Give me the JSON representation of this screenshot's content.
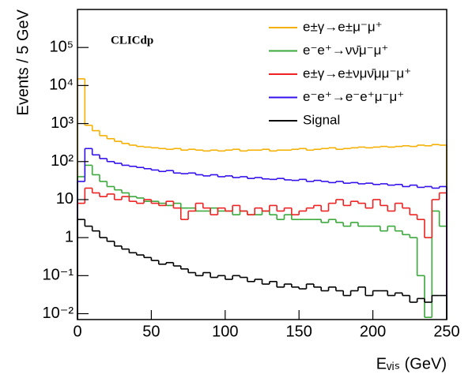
{
  "chart_data": {
    "type": "histogram",
    "xlabel": "Eᵥᵢₛ (GeV)",
    "ylabel": "Events / 5 GeV",
    "annotation": "CLICdp",
    "log_y": true,
    "legend": "upper right",
    "xlim": [
      0,
      250
    ],
    "xticks": [
      0,
      50,
      100,
      150,
      200,
      250
    ],
    "ylim": [
      0.007,
      1000000
    ],
    "yticks": [
      {
        "value": 0.01,
        "label": "10⁻²"
      },
      {
        "value": 0.1,
        "label": "10⁻¹"
      },
      1,
      10,
      {
        "value": 100,
        "label": "10²"
      },
      {
        "value": 1000,
        "label": "10³"
      },
      {
        "value": 10000,
        "label": "10⁴"
      },
      {
        "value": 100000,
        "label": "10⁵"
      }
    ],
    "bins": [
      0,
      5,
      10,
      15,
      20,
      25,
      30,
      35,
      40,
      45,
      50,
      55,
      60,
      65,
      70,
      75,
      80,
      85,
      90,
      95,
      100,
      105,
      110,
      115,
      120,
      125,
      130,
      135,
      140,
      145,
      150,
      155,
      160,
      165,
      170,
      175,
      180,
      185,
      190,
      195,
      200,
      205,
      210,
      215,
      220,
      225,
      230,
      235,
      240,
      245,
      250
    ],
    "series": [
      {
        "name": "e±γ→e±μ⁻μ⁺",
        "color": "#f5b000",
        "values": [
          15000,
          900,
          650,
          480,
          400,
          340,
          300,
          270,
          250,
          240,
          230,
          220,
          210,
          220,
          200,
          210,
          200,
          190,
          200,
          190,
          200,
          210,
          190,
          200,
          200,
          210,
          190,
          200,
          200,
          210,
          220,
          200,
          210,
          220,
          230,
          210,
          220,
          230,
          240,
          230,
          240,
          250,
          240,
          250,
          260,
          250,
          270,
          260,
          280,
          270
        ]
      },
      {
        "name": "e⁻e⁺→νν̄μ⁻μ⁺",
        "color": "#3aa83a",
        "values": [
          40,
          80,
          45,
          30,
          22,
          18,
          15,
          12,
          11,
          9,
          9,
          8,
          7,
          8,
          6,
          6,
          5,
          5,
          6,
          5,
          5,
          4,
          5,
          4,
          4,
          5,
          4,
          3,
          4,
          3,
          3,
          3,
          3,
          2.5,
          3,
          2.5,
          2,
          2.5,
          2,
          2,
          2,
          1.5,
          2,
          1.5,
          1.2,
          1,
          0.1,
          0.008,
          5,
          2
        ]
      },
      {
        "name": "e±γ→e±νμν̄μμ⁻μ⁺",
        "color": "#ee2222",
        "values": [
          8,
          20,
          15,
          12,
          14,
          10,
          12,
          9,
          8,
          10,
          8,
          7,
          9,
          6,
          3,
          5,
          8,
          6,
          4,
          6,
          5,
          7,
          5,
          4,
          6,
          5,
          7,
          5,
          6,
          4,
          5,
          6,
          7,
          5,
          8,
          10,
          7,
          9,
          8,
          6,
          10,
          7,
          5,
          8,
          6,
          4,
          3,
          1,
          10,
          15
        ]
      },
      {
        "name": "e⁻e⁺→e⁻e⁺μ⁻μ⁺",
        "color": "#3311ee",
        "values": [
          30,
          220,
          150,
          120,
          100,
          90,
          80,
          75,
          70,
          65,
          60,
          55,
          58,
          50,
          48,
          50,
          45,
          42,
          45,
          40,
          42,
          38,
          40,
          36,
          38,
          35,
          34,
          36,
          33,
          32,
          34,
          30,
          32,
          30,
          28,
          30,
          27,
          28,
          26,
          27,
          25,
          26,
          24,
          25,
          22,
          24,
          21,
          22,
          20,
          22
        ]
      },
      {
        "name": "Signal",
        "color": "#000000",
        "values": [
          3,
          2,
          1.5,
          1,
          0.8,
          0.6,
          0.5,
          0.4,
          0.35,
          0.3,
          0.25,
          0.2,
          0.22,
          0.18,
          0.15,
          0.12,
          0.1,
          0.12,
          0.09,
          0.1,
          0.08,
          0.1,
          0.09,
          0.07,
          0.08,
          0.06,
          0.07,
          0.05,
          0.06,
          0.05,
          0.045,
          0.06,
          0.05,
          0.04,
          0.05,
          0.04,
          0.03,
          0.04,
          0.05,
          0.03,
          0.04,
          0.04,
          0.03,
          0.035,
          0.03,
          0.02,
          0.025,
          0.02,
          0.03,
          0.03
        ]
      }
    ]
  }
}
